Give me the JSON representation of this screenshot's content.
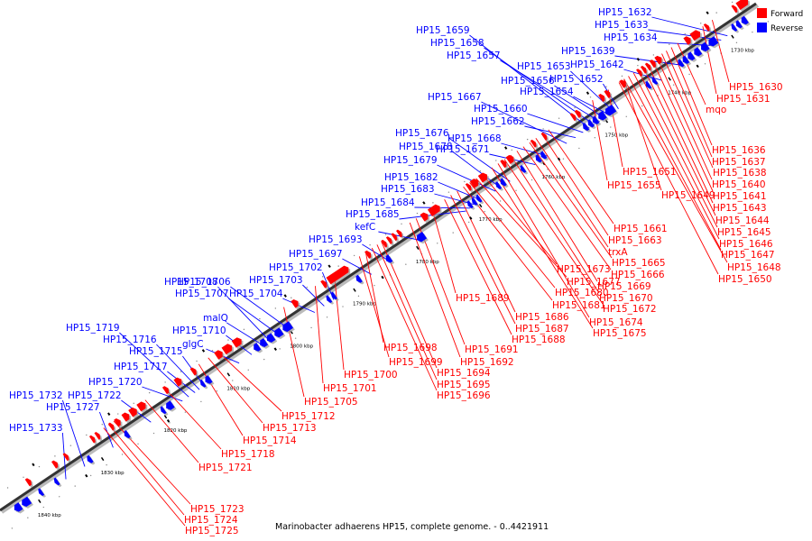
{
  "legend": {
    "forward_label": "Forward",
    "reverse_label": "Reverse",
    "forward_color": "#ff0000",
    "reverse_color": "#0000ff"
  },
  "caption": "Marinobacter adhaerens HP15, complete genome. - 0..4421911",
  "kbp_ticks": [
    {
      "kbp": 1730,
      "label": "1730 kbp"
    },
    {
      "kbp": 1740,
      "label": "1740 kbp"
    },
    {
      "kbp": 1750,
      "label": "1750 kbp"
    },
    {
      "kbp": 1760,
      "label": "1760 kbp"
    },
    {
      "kbp": 1770,
      "label": "1770 kbp"
    },
    {
      "kbp": 1780,
      "label": "1780 kbp"
    },
    {
      "kbp": 1790,
      "label": "1790 kbp"
    },
    {
      "kbp": 1800,
      "label": "1800 kbp"
    },
    {
      "kbp": 1810,
      "label": "1810 kbp"
    },
    {
      "kbp": 1820,
      "label": "1820 kbp"
    },
    {
      "kbp": 1830,
      "label": "1830 kbp"
    },
    {
      "kbp": 1840,
      "label": "1840 kbp"
    }
  ],
  "reverse_labels": [
    {
      "text": "HP15_1632",
      "kbp": 1730.5
    },
    {
      "text": "HP15_1633",
      "kbp": 1731.5
    },
    {
      "text": "HP15_1634",
      "kbp": 1732.8
    },
    {
      "text": "HP15_1639",
      "kbp": 1737.5
    },
    {
      "text": "HP15_1642",
      "kbp": 1741.0
    },
    {
      "text": "HP15_1652",
      "kbp": 1747.8
    },
    {
      "text": "HP15_1653",
      "kbp": 1748.5
    },
    {
      "text": "HP15_1654",
      "kbp": 1749.2
    },
    {
      "text": "HP15_1656",
      "kbp": 1750.0
    },
    {
      "text": "HP15_1657",
      "kbp": 1750.8
    },
    {
      "text": "HP15_1658",
      "kbp": 1751.6
    },
    {
      "text": "HP15_1659",
      "kbp": 1752.4
    },
    {
      "text": "HP15_1660",
      "kbp": 1753.4
    },
    {
      "text": "HP15_1662",
      "kbp": 1754.6
    },
    {
      "text": "HP15_1667",
      "kbp": 1756.0
    },
    {
      "text": "HP15_1668",
      "kbp": 1759.0
    },
    {
      "text": "HP15_1671",
      "kbp": 1761.0
    },
    {
      "text": "HP15_1676",
      "kbp": 1765.0
    },
    {
      "text": "HP15_1678",
      "kbp": 1766.5
    },
    {
      "text": "HP15_1679",
      "kbp": 1767.3
    },
    {
      "text": "HP15_1682",
      "kbp": 1769.5
    },
    {
      "text": "HP15_1683",
      "kbp": 1770.5
    },
    {
      "text": "HP15_1684",
      "kbp": 1771.3
    },
    {
      "text": "HP15_1685",
      "kbp": 1772.0
    },
    {
      "text": "kefC",
      "kbp": 1779.0
    },
    {
      "text": "HP15_1693",
      "kbp": 1784.0
    },
    {
      "text": "HP15_1697",
      "kbp": 1787.0
    },
    {
      "text": "HP15_1702",
      "kbp": 1793.0
    },
    {
      "text": "HP15_1703",
      "kbp": 1794.5
    },
    {
      "text": "HP15_1704",
      "kbp": 1796.0
    },
    {
      "text": "HP15_1706",
      "kbp": 1800.0
    },
    {
      "text": "HP15_1707",
      "kbp": 1801.5
    },
    {
      "text": "HP15_1708",
      "kbp": 1803.0
    },
    {
      "text": "malQ",
      "kbp": 1804.0
    },
    {
      "text": "HP15_1710",
      "kbp": 1806.0
    },
    {
      "text": "glgC",
      "kbp": 1808.0
    },
    {
      "text": "HP15_1715",
      "kbp": 1813.5
    },
    {
      "text": "HP15_1716",
      "kbp": 1814.3
    },
    {
      "text": "HP15_1717",
      "kbp": 1815.0
    },
    {
      "text": "HP15_1719",
      "kbp": 1816.0
    },
    {
      "text": "HP15_1720",
      "kbp": 1817.0
    },
    {
      "text": "HP15_1722",
      "kbp": 1822.0
    },
    {
      "text": "HP15_1727",
      "kbp": 1828.0
    },
    {
      "text": "HP15_1732",
      "kbp": 1832.5
    },
    {
      "text": "HP15_1733",
      "kbp": 1835.5
    }
  ],
  "forward_labels_upper": [
    {
      "text": "HP15_1630",
      "kbp": 1731.0
    },
    {
      "text": "HP15_1631",
      "kbp": 1732.5
    },
    {
      "text": "mqo",
      "kbp": 1736.5
    }
  ],
  "forward_labels": [
    {
      "text": "HP15_1636",
      "kbp": 1737.5
    },
    {
      "text": "HP15_1637",
      "kbp": 1738.3
    },
    {
      "text": "HP15_1638",
      "kbp": 1739.0
    },
    {
      "text": "HP15_1640",
      "kbp": 1739.8
    },
    {
      "text": "HP15_1641",
      "kbp": 1740.5
    },
    {
      "text": "HP15_1643",
      "kbp": 1741.3
    },
    {
      "text": "HP15_1644",
      "kbp": 1742.0
    },
    {
      "text": "HP15_1645",
      "kbp": 1742.8
    },
    {
      "text": "HP15_1646",
      "kbp": 1743.5
    },
    {
      "text": "HP15_1647",
      "kbp": 1744.3
    },
    {
      "text": "HP15_1648",
      "kbp": 1745.0
    },
    {
      "text": "HP15_1650",
      "kbp": 1745.8
    },
    {
      "text": "HP15_1651",
      "kbp": 1747.5
    },
    {
      "text": "HP15_1649",
      "kbp": 1745.0
    },
    {
      "text": "HP15_1655",
      "kbp": 1750.0
    },
    {
      "text": "HP15_1661",
      "kbp": 1757.0
    },
    {
      "text": "HP15_1663",
      "kbp": 1758.0
    },
    {
      "text": "trxA",
      "kbp": 1759.0
    },
    {
      "text": "HP15_1665",
      "kbp": 1760.0
    },
    {
      "text": "HP15_1666",
      "kbp": 1761.0
    },
    {
      "text": "HP15_1669",
      "kbp": 1762.0
    },
    {
      "text": "HP15_1670",
      "kbp": 1763.0
    },
    {
      "text": "HP15_1672",
      "kbp": 1764.0
    },
    {
      "text": "HP15_1674",
      "kbp": 1765.0
    },
    {
      "text": "HP15_1675",
      "kbp": 1766.0
    },
    {
      "text": "HP15_1673",
      "kbp": 1767.5
    },
    {
      "text": "HP15_1677",
      "kbp": 1768.5
    },
    {
      "text": "HP15_1680",
      "kbp": 1769.5
    },
    {
      "text": "HP15_1681",
      "kbp": 1770.5
    },
    {
      "text": "HP15_1686",
      "kbp": 1771.5
    },
    {
      "text": "HP15_1687",
      "kbp": 1772.5
    },
    {
      "text": "HP15_1688",
      "kbp": 1773.5
    },
    {
      "text": "HP15_1689",
      "kbp": 1775.5
    },
    {
      "text": "HP15_1691",
      "kbp": 1778.0
    },
    {
      "text": "HP15_1692",
      "kbp": 1779.0
    },
    {
      "text": "HP15_1694",
      "kbp": 1783.5
    },
    {
      "text": "HP15_1695",
      "kbp": 1784.2
    },
    {
      "text": "HP15_1696",
      "kbp": 1785.0
    },
    {
      "text": "HP15_1698",
      "kbp": 1786.0
    },
    {
      "text": "HP15_1699",
      "kbp": 1787.0
    },
    {
      "text": "HP15_1700",
      "kbp": 1791.0
    },
    {
      "text": "HP15_1701",
      "kbp": 1794.0
    },
    {
      "text": "HP15_1705",
      "kbp": 1799.0
    },
    {
      "text": "HP15_1712",
      "kbp": 1809.5
    },
    {
      "text": "HP15_1713",
      "kbp": 1811.0
    },
    {
      "text": "HP15_1714",
      "kbp": 1812.5
    },
    {
      "text": "HP15_1718",
      "kbp": 1818.0
    },
    {
      "text": "HP15_1721",
      "kbp": 1821.0
    },
    {
      "text": "HP15_1723",
      "kbp": 1826.0
    },
    {
      "text": "HP15_1724",
      "kbp": 1826.8
    },
    {
      "text": "HP15_1725",
      "kbp": 1827.6
    }
  ],
  "reverse_genes": [
    {
      "kbp": 1727.2,
      "len": 0.8
    },
    {
      "kbp": 1728.2,
      "len": 0.6
    },
    {
      "kbp": 1729.0,
      "len": 0.5
    },
    {
      "kbp": 1732.0,
      "len": 1.2
    },
    {
      "kbp": 1733.4,
      "len": 1.0
    },
    {
      "kbp": 1734.6,
      "len": 0.9
    },
    {
      "kbp": 1735.7,
      "len": 0.8
    },
    {
      "kbp": 1736.6,
      "len": 0.7
    },
    {
      "kbp": 1737.4,
      "len": 0.6
    },
    {
      "kbp": 1741.6,
      "len": 0.5
    },
    {
      "kbp": 1742.6,
      "len": 0.5
    },
    {
      "kbp": 1748.2,
      "len": 1.4
    },
    {
      "kbp": 1749.7,
      "len": 1.0
    },
    {
      "kbp": 1750.9,
      "len": 0.7
    },
    {
      "kbp": 1751.7,
      "len": 0.6
    },
    {
      "kbp": 1752.5,
      "len": 0.6
    },
    {
      "kbp": 1759.2,
      "len": 0.6
    },
    {
      "kbp": 1760.0,
      "len": 0.6
    },
    {
      "kbp": 1762.5,
      "len": 0.5
    },
    {
      "kbp": 1765.6,
      "len": 0.6
    },
    {
      "kbp": 1766.4,
      "len": 0.5
    },
    {
      "kbp": 1769.5,
      "len": 0.5
    },
    {
      "kbp": 1770.2,
      "len": 0.5
    },
    {
      "kbp": 1770.9,
      "len": 0.5
    },
    {
      "kbp": 1778.3,
      "len": 1.2
    },
    {
      "kbp": 1783.7,
      "len": 0.7
    },
    {
      "kbp": 1788.5,
      "len": 0.6
    },
    {
      "kbp": 1792.5,
      "len": 0.5
    },
    {
      "kbp": 1793.3,
      "len": 0.5
    },
    {
      "kbp": 1799.5,
      "len": 1.3
    },
    {
      "kbp": 1801.0,
      "len": 1.1
    },
    {
      "kbp": 1802.3,
      "len": 1.0
    },
    {
      "kbp": 1803.5,
      "len": 0.9
    },
    {
      "kbp": 1804.6,
      "len": 0.8
    },
    {
      "kbp": 1812.3,
      "len": 0.8
    },
    {
      "kbp": 1813.3,
      "len": 0.5
    },
    {
      "kbp": 1818.3,
      "len": 1.0
    },
    {
      "kbp": 1819.6,
      "len": 0.5
    },
    {
      "kbp": 1825.3,
      "len": 0.6
    },
    {
      "kbp": 1831.2,
      "len": 0.6
    },
    {
      "kbp": 1836.5,
      "len": 0.5
    },
    {
      "kbp": 1839.0,
      "len": 0.5
    },
    {
      "kbp": 1841.0,
      "len": 1.2
    },
    {
      "kbp": 1842.4,
      "len": 1.0
    }
  ],
  "forward_genes": [
    {
      "kbp": 1725.6,
      "len": 1.6
    },
    {
      "kbp": 1727.4,
      "len": 0.5
    },
    {
      "kbp": 1731.8,
      "len": 0.5
    },
    {
      "kbp": 1733.2,
      "len": 1.3
    },
    {
      "kbp": 1734.7,
      "len": 0.8
    },
    {
      "kbp": 1739.3,
      "len": 0.8
    },
    {
      "kbp": 1740.3,
      "len": 0.6
    },
    {
      "kbp": 1741.1,
      "len": 0.5
    },
    {
      "kbp": 1741.8,
      "len": 0.5
    },
    {
      "kbp": 1742.5,
      "len": 0.5
    },
    {
      "kbp": 1745.0,
      "len": 0.7
    },
    {
      "kbp": 1747.5,
      "len": 0.6
    },
    {
      "kbp": 1748.4,
      "len": 0.6
    },
    {
      "kbp": 1752.2,
      "len": 0.6
    },
    {
      "kbp": 1753.0,
      "len": 0.5
    },
    {
      "kbp": 1757.6,
      "len": 0.5
    },
    {
      "kbp": 1759.3,
      "len": 0.5
    },
    {
      "kbp": 1762.8,
      "len": 0.9
    },
    {
      "kbp": 1764.0,
      "len": 0.6
    },
    {
      "kbp": 1767.0,
      "len": 1.1
    },
    {
      "kbp": 1768.4,
      "len": 1.0
    },
    {
      "kbp": 1769.6,
      "len": 0.5
    },
    {
      "kbp": 1774.5,
      "len": 1.6
    },
    {
      "kbp": 1776.4,
      "len": 0.9
    },
    {
      "kbp": 1780.6,
      "len": 0.5
    },
    {
      "kbp": 1781.4,
      "len": 0.5
    },
    {
      "kbp": 1782.2,
      "len": 0.5
    },
    {
      "kbp": 1783.0,
      "len": 0.5
    },
    {
      "kbp": 1785.5,
      "len": 0.6
    },
    {
      "kbp": 1789.0,
      "len": 3.2
    },
    {
      "kbp": 1792.5,
      "len": 0.6
    },
    {
      "kbp": 1797.0,
      "len": 0.8
    },
    {
      "kbp": 1806.0,
      "len": 1.2
    },
    {
      "kbp": 1807.5,
      "len": 1.3
    },
    {
      "kbp": 1809.0,
      "len": 1.0
    },
    {
      "kbp": 1813.2,
      "len": 0.6
    },
    {
      "kbp": 1815.5,
      "len": 0.9
    },
    {
      "kbp": 1817.6,
      "len": 0.6
    },
    {
      "kbp": 1821.2,
      "len": 1.1
    },
    {
      "kbp": 1822.6,
      "len": 1.0
    },
    {
      "kbp": 1823.8,
      "len": 0.9
    },
    {
      "kbp": 1825.2,
      "len": 0.7
    },
    {
      "kbp": 1826.3,
      "len": 0.5
    },
    {
      "kbp": 1828.5,
      "len": 0.5
    },
    {
      "kbp": 1829.3,
      "len": 0.5
    },
    {
      "kbp": 1833.5,
      "len": 0.5
    },
    {
      "kbp": 1835.2,
      "len": 0.6
    },
    {
      "kbp": 1839.4,
      "len": 0.6
    }
  ]
}
